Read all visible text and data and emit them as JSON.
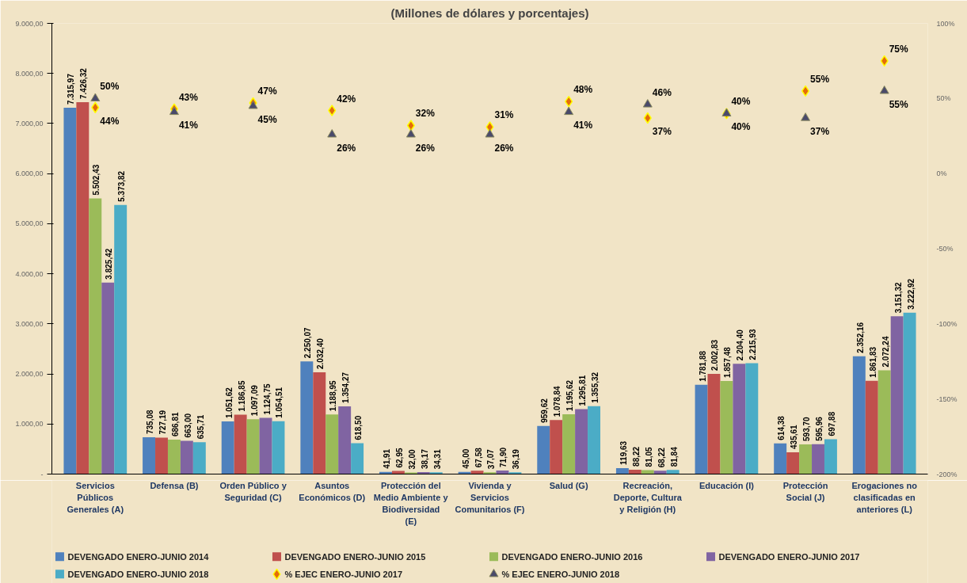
{
  "chart_data": {
    "type": "bar",
    "title": "(Millones de dólares y porcentajes)",
    "categories": [
      "Servicios Públicos Generales (A)",
      "Defensa (B)",
      "Orden Público y Seguridad (C)",
      "Asuntos Económicos (D)",
      "Protección del Medio Ambiente y Biodiversidad (E)",
      "Vivienda y Servicios Comunitarios (F)",
      "Salud (G)",
      "Recreación, Deporte, Cultura y Religión (H)",
      "Educación (I)",
      "Protección Social (J)",
      "Erogaciones no clasificadas en anteriores (L)"
    ],
    "series": [
      {
        "name": "DEVENGADO ENERO-JUNIO 2014",
        "color": "#4f81bd",
        "values": [
          7315.97,
          735.08,
          1051.62,
          2250.07,
          41.91,
          45.0,
          959.62,
          119.63,
          1781.88,
          614.38,
          2352.16
        ],
        "value_labels": [
          "7.315,97",
          "735,08",
          "1.051,62",
          "2.250,07",
          "41,91",
          "45,00",
          "959,62",
          "119,63",
          "1.781,88",
          "614,38",
          "2.352,16"
        ]
      },
      {
        "name": "DEVENGADO ENERO-JUNIO 2015",
        "color": "#c0504d",
        "values": [
          7426.32,
          727.19,
          1186.85,
          2032.4,
          62.95,
          67.58,
          1078.84,
          88.22,
          2002.83,
          435.61,
          1861.83
        ],
        "value_labels": [
          "7.426,32",
          "727,19",
          "1.186,85",
          "2.032,40",
          "62,95",
          "67,58",
          "1.078,84",
          "88,22",
          "2.002,83",
          "435,61",
          "1.861,83"
        ]
      },
      {
        "name": "DEVENGADO ENERO-JUNIO 2016",
        "color": "#9bbb59",
        "values": [
          5502.43,
          686.81,
          1097.09,
          1188.95,
          32.0,
          37.07,
          1195.62,
          81.05,
          1857.48,
          593.7,
          2072.24
        ],
        "value_labels": [
          "5.502,43",
          "686,81",
          "1.097,09",
          "1.188,95",
          "32,00",
          "37,07",
          "1.195,62",
          "81,05",
          "1.857,48",
          "593,70",
          "2.072,24"
        ]
      },
      {
        "name": "DEVENGADO ENERO-JUNIO 2017",
        "color": "#8064a2",
        "values": [
          3825.42,
          663.0,
          1124.75,
          1354.27,
          38.17,
          71.9,
          1295.81,
          68.22,
          2204.4,
          595.96,
          3151.32
        ],
        "value_labels": [
          "3.825,42",
          "663,00",
          "1.124,75",
          "1.354,27",
          "38,17",
          "71,90",
          "1.295,81",
          "68,22",
          "2.204,40",
          "595,96",
          "3.151,32"
        ]
      },
      {
        "name": "DEVENGADO ENERO-JUNIO 2018",
        "color": "#4bacc6",
        "values": [
          5373.82,
          635.71,
          1054.51,
          618.5,
          34.31,
          36.19,
          1355.32,
          81.84,
          2215.93,
          697.88,
          3222.92
        ],
        "value_labels": [
          "5.373,82",
          "635,71",
          "1.054,51",
          "618,50",
          "34,31",
          "36,19",
          "1.355,32",
          "81,84",
          "2.215,93",
          "697,88",
          "3.222,92"
        ]
      },
      {
        "name": "% EJEC ENERO-JUNIO 2017",
        "type": "scatter",
        "axis": "y2",
        "marker": "diamond",
        "color": "#e46c0a",
        "values": [
          44,
          43,
          47,
          42,
          32,
          31,
          48,
          37,
          40,
          55,
          75
        ],
        "value_labels": [
          "44%",
          "43%",
          "47%",
          "42%",
          "32%",
          "31%",
          "48%",
          "37%",
          "40%",
          "55%",
          "75%"
        ]
      },
      {
        "name": "% EJEC ENERO-JUNIO 2018",
        "type": "scatter",
        "axis": "y2",
        "marker": "triangle",
        "color": "#4a4a6a",
        "values": [
          50,
          41,
          45,
          26,
          26,
          26,
          41,
          46,
          40,
          37,
          55
        ],
        "value_labels": [
          "50%",
          "41%",
          "45%",
          "26%",
          "26%",
          "26%",
          "41%",
          "46%",
          "40%",
          "37%",
          "55%"
        ]
      }
    ],
    "ylim": [
      0,
      9000
    ],
    "yticks": [
      {
        "value": 0,
        "label": "-"
      },
      {
        "value": 1000,
        "label": "1.000,00"
      },
      {
        "value": 2000,
        "label": "2.000,00"
      },
      {
        "value": 3000,
        "label": "3.000,00"
      },
      {
        "value": 4000,
        "label": "4.000,00"
      },
      {
        "value": 5000,
        "label": "5.000,00"
      },
      {
        "value": 6000,
        "label": "6.000,00"
      },
      {
        "value": 7000,
        "label": "7.000,00"
      },
      {
        "value": 8000,
        "label": "8.000,00"
      },
      {
        "value": 9000,
        "label": "9.000,00"
      }
    ],
    "y2lim": [
      -200,
      100
    ],
    "y2ticks": [
      {
        "value": -200,
        "label": "-200%"
      },
      {
        "value": -150,
        "label": "-150%"
      },
      {
        "value": -100,
        "label": "-100%"
      },
      {
        "value": -50,
        "label": "-50%"
      },
      {
        "value": 0,
        "label": "0%"
      },
      {
        "value": 50,
        "label": "50%"
      },
      {
        "value": 100,
        "label": "100%"
      }
    ],
    "legend": "bottom",
    "grid": false
  }
}
